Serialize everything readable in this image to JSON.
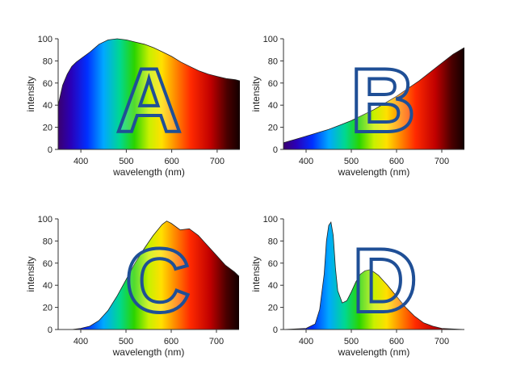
{
  "colors": {
    "letter_stroke": "#1f4f96",
    "axis": "#333333"
  },
  "chart_data": [
    {
      "type": "area",
      "panel_letter": "A",
      "xlabel": "wavelength (nm)",
      "ylabel": "intensity",
      "xlim": [
        350,
        750
      ],
      "ylim": [
        0,
        100
      ],
      "x_ticks": [
        400,
        500,
        600,
        700
      ],
      "y_ticks": [
        0,
        20,
        40,
        60,
        80,
        100
      ],
      "fill": "spectral gradient",
      "series": [
        {
          "x": [
            350,
            360,
            370,
            380,
            390,
            400,
            420,
            440,
            460,
            480,
            500,
            520,
            540,
            560,
            580,
            600,
            620,
            640,
            660,
            680,
            700,
            720,
            740,
            750
          ],
          "y": [
            40,
            58,
            68,
            75,
            79,
            82,
            88,
            95,
            99,
            100,
            99,
            97,
            95,
            92,
            88,
            84,
            79,
            75,
            71,
            68,
            66,
            64,
            63,
            62
          ]
        }
      ]
    },
    {
      "type": "area",
      "panel_letter": "B",
      "xlabel": "wavelength (nm)",
      "ylabel": "intensity",
      "xlim": [
        350,
        750
      ],
      "ylim": [
        0,
        100
      ],
      "x_ticks": [
        400,
        500,
        600,
        700
      ],
      "y_ticks": [
        0,
        20,
        40,
        60,
        80,
        100
      ],
      "fill": "spectral gradient",
      "series": [
        {
          "x": [
            350,
            375,
            400,
            425,
            450,
            475,
            500,
            525,
            550,
            575,
            600,
            625,
            650,
            675,
            700,
            725,
            750
          ],
          "y": [
            6,
            9,
            12,
            15,
            18,
            22,
            26,
            31,
            36,
            42,
            48,
            55,
            62,
            70,
            78,
            86,
            92
          ]
        }
      ]
    },
    {
      "type": "area",
      "panel_letter": "C",
      "xlabel": "wavelength (nm)",
      "ylabel": "intensity",
      "xlim": [
        350,
        750
      ],
      "ylim": [
        0,
        100
      ],
      "x_ticks": [
        400,
        500,
        600,
        700
      ],
      "y_ticks": [
        0,
        20,
        40,
        60,
        80,
        100
      ],
      "fill": "spectral gradient",
      "series": [
        {
          "x": [
            350,
            380,
            400,
            420,
            440,
            460,
            480,
            500,
            520,
            540,
            560,
            580,
            590,
            600,
            620,
            640,
            660,
            680,
            700,
            720,
            740,
            750
          ],
          "y": [
            0,
            0,
            1,
            3,
            8,
            17,
            30,
            45,
            60,
            73,
            85,
            95,
            98,
            96,
            90,
            91,
            85,
            76,
            67,
            58,
            52,
            48
          ]
        }
      ]
    },
    {
      "type": "area",
      "panel_letter": "D",
      "xlabel": "wavelength (nm)",
      "ylabel": "intensity",
      "xlim": [
        350,
        750
      ],
      "ylim": [
        0,
        100
      ],
      "x_ticks": [
        400,
        500,
        600,
        700
      ],
      "y_ticks": [
        0,
        20,
        40,
        60,
        80,
        100
      ],
      "fill": "spectral gradient",
      "series": [
        {
          "x": [
            350,
            400,
            420,
            430,
            440,
            445,
            450,
            455,
            460,
            465,
            470,
            480,
            490,
            500,
            510,
            520,
            530,
            540,
            550,
            560,
            580,
            600,
            620,
            640,
            660,
            680,
            700,
            750
          ],
          "y": [
            0,
            1,
            5,
            18,
            50,
            80,
            94,
            97,
            85,
            55,
            35,
            24,
            26,
            34,
            43,
            50,
            53,
            54,
            52,
            49,
            40,
            30,
            20,
            12,
            6,
            3,
            1,
            0
          ]
        }
      ]
    }
  ]
}
